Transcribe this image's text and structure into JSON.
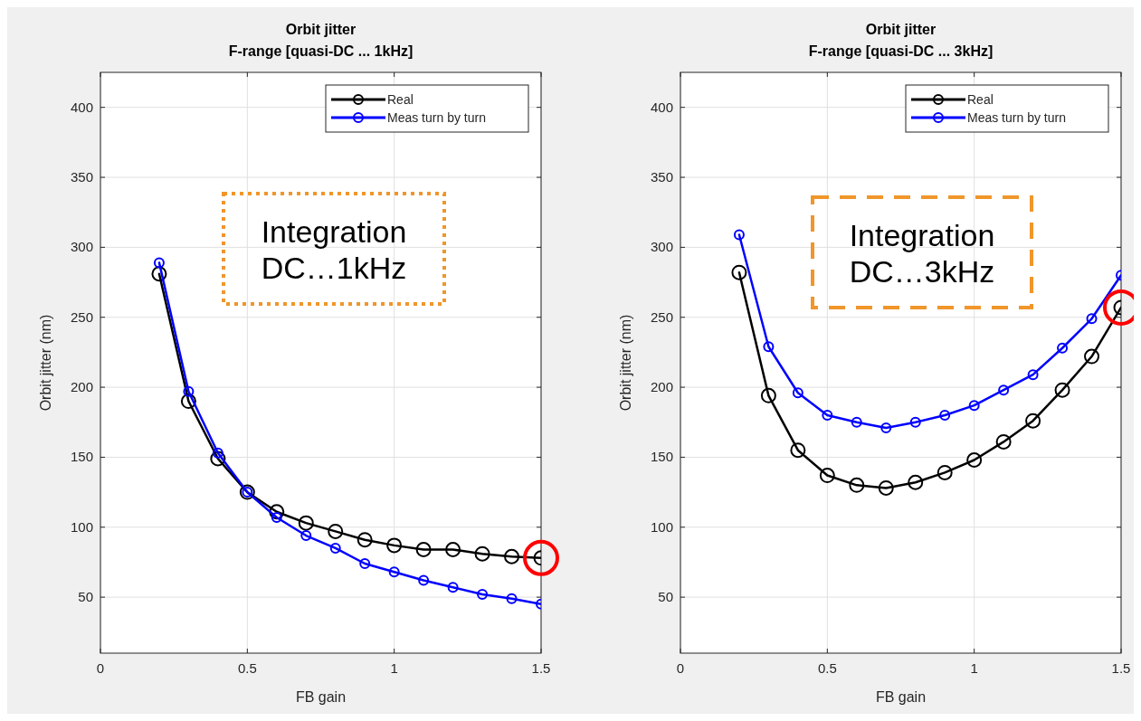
{
  "chart_data": [
    {
      "type": "line",
      "title": "Orbit jitter",
      "subtitle": "F-range [quasi-DC ... 1kHz]",
      "xlabel": "FB gain",
      "ylabel": "Orbit jitter (nm)",
      "annotations": [
        "Integration DC…1kHz"
      ],
      "x": [
        0.2,
        0.3,
        0.4,
        0.5,
        0.6,
        0.7,
        0.8,
        0.9,
        1.0,
        1.1,
        1.2,
        1.3,
        1.4,
        1.5
      ],
      "series": [
        {
          "name": "Real",
          "color": "#000000",
          "values": [
            281,
            190,
            149,
            125,
            111,
            103,
            97,
            91,
            87,
            84,
            84,
            81,
            79,
            78
          ]
        },
        {
          "name": "Meas turn by turn",
          "color": "#0000ff",
          "values": [
            289,
            197,
            153,
            125,
            107,
            94,
            85,
            74,
            68,
            62,
            57,
            52,
            49,
            45
          ]
        }
      ],
      "xlim": [
        0,
        1.5
      ],
      "xticks": [
        0,
        0.5,
        1,
        1.5
      ],
      "ylim": [
        10,
        425
      ],
      "yticks": [
        50,
        100,
        150,
        200,
        250,
        300,
        350,
        400
      ],
      "grid": true,
      "legend": "top right",
      "marker": "circle",
      "line_style": "solid"
    },
    {
      "type": "line",
      "title": "Orbit jitter",
      "subtitle": "F-range [quasi-DC ... 3kHz]",
      "xlabel": "FB gain",
      "ylabel": "Orbit jitter (nm)",
      "annotations": [
        "Integration DC…3kHz"
      ],
      "x": [
        0.2,
        0.3,
        0.4,
        0.5,
        0.6,
        0.7,
        0.8,
        0.9,
        1.0,
        1.1,
        1.2,
        1.3,
        1.4,
        1.5
      ],
      "series": [
        {
          "name": "Real",
          "color": "#000000",
          "values": [
            282,
            194,
            155,
            137,
            130,
            128,
            132,
            139,
            148,
            161,
            176,
            198,
            222,
            257
          ]
        },
        {
          "name": "Meas turn by turn",
          "color": "#0000ff",
          "values": [
            309,
            229,
            196,
            180,
            175,
            171,
            175,
            180,
            187,
            198,
            209,
            228,
            249,
            280
          ]
        }
      ],
      "xlim": [
        0,
        1.5
      ],
      "xticks": [
        0,
        0.5,
        1,
        1.5
      ],
      "ylim": [
        10,
        425
      ],
      "yticks": [
        50,
        100,
        150,
        200,
        250,
        300,
        350,
        400
      ],
      "grid": true,
      "legend": "top right",
      "marker": "circle",
      "line_style": "solid"
    }
  ]
}
